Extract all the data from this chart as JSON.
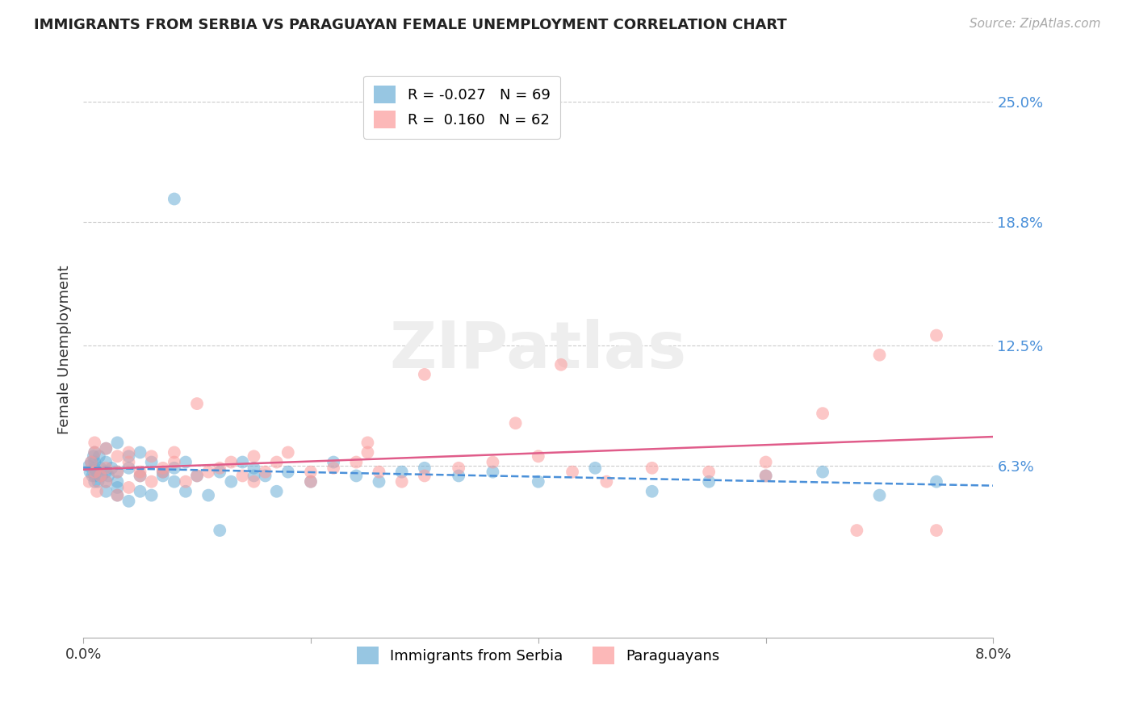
{
  "title": "IMMIGRANTS FROM SERBIA VS PARAGUAYAN FEMALE UNEMPLOYMENT CORRELATION CHART",
  "source": "Source: ZipAtlas.com",
  "ylabel": "Female Unemployment",
  "ytick_labels": [
    "25.0%",
    "18.8%",
    "12.5%",
    "6.3%"
  ],
  "ytick_values": [
    0.25,
    0.188,
    0.125,
    0.063
  ],
  "xmin": 0.0,
  "xmax": 0.08,
  "ymin": -0.025,
  "ymax": 0.27,
  "color_serbia": "#6baed6",
  "color_paraguay": "#fb9a9a",
  "trendline_serbia_color": "#4a90d9",
  "trendline_paraguay_color": "#e05c8a",
  "serbia_x": [
    0.0005,
    0.0006,
    0.0007,
    0.0008,
    0.0009,
    0.001,
    0.001,
    0.001,
    0.001,
    0.001,
    0.0012,
    0.0013,
    0.0014,
    0.0015,
    0.0016,
    0.002,
    0.002,
    0.002,
    0.002,
    0.002,
    0.0022,
    0.0025,
    0.003,
    0.003,
    0.003,
    0.003,
    0.003,
    0.004,
    0.004,
    0.004,
    0.005,
    0.005,
    0.005,
    0.006,
    0.006,
    0.007,
    0.007,
    0.008,
    0.008,
    0.009,
    0.009,
    0.01,
    0.011,
    0.012,
    0.013,
    0.014,
    0.015,
    0.016,
    0.017,
    0.018,
    0.02,
    0.022,
    0.024,
    0.026,
    0.028,
    0.03,
    0.033,
    0.036,
    0.04,
    0.045,
    0.05,
    0.055,
    0.06,
    0.065,
    0.07,
    0.075,
    0.015,
    0.008,
    0.012
  ],
  "serbia_y": [
    0.063,
    0.06,
    0.065,
    0.058,
    0.068,
    0.055,
    0.07,
    0.062,
    0.058,
    0.065,
    0.06,
    0.055,
    0.068,
    0.062,
    0.058,
    0.06,
    0.065,
    0.055,
    0.072,
    0.05,
    0.058,
    0.062,
    0.048,
    0.075,
    0.052,
    0.06,
    0.055,
    0.068,
    0.045,
    0.062,
    0.058,
    0.05,
    0.07,
    0.065,
    0.048,
    0.058,
    0.06,
    0.055,
    0.062,
    0.05,
    0.065,
    0.058,
    0.048,
    0.06,
    0.055,
    0.065,
    0.062,
    0.058,
    0.05,
    0.06,
    0.055,
    0.065,
    0.058,
    0.055,
    0.06,
    0.062,
    0.058,
    0.06,
    0.055,
    0.062,
    0.05,
    0.055,
    0.058,
    0.06,
    0.048,
    0.055,
    0.058,
    0.2,
    0.03
  ],
  "paraguay_x": [
    0.0005,
    0.0007,
    0.001,
    0.001,
    0.001,
    0.0012,
    0.0015,
    0.002,
    0.002,
    0.002,
    0.003,
    0.003,
    0.003,
    0.004,
    0.004,
    0.004,
    0.005,
    0.005,
    0.006,
    0.006,
    0.007,
    0.007,
    0.008,
    0.008,
    0.009,
    0.01,
    0.011,
    0.012,
    0.013,
    0.014,
    0.015,
    0.016,
    0.017,
    0.018,
    0.02,
    0.022,
    0.024,
    0.026,
    0.028,
    0.03,
    0.033,
    0.036,
    0.04,
    0.043,
    0.046,
    0.05,
    0.055,
    0.06,
    0.065,
    0.07,
    0.075,
    0.038,
    0.025,
    0.01,
    0.015,
    0.02,
    0.025,
    0.03,
    0.042,
    0.06,
    0.068,
    0.075
  ],
  "paraguay_y": [
    0.055,
    0.065,
    0.075,
    0.06,
    0.07,
    0.05,
    0.058,
    0.062,
    0.072,
    0.055,
    0.068,
    0.048,
    0.06,
    0.052,
    0.065,
    0.07,
    0.058,
    0.06,
    0.055,
    0.068,
    0.062,
    0.06,
    0.065,
    0.07,
    0.055,
    0.058,
    0.06,
    0.062,
    0.065,
    0.058,
    0.055,
    0.06,
    0.065,
    0.07,
    0.06,
    0.062,
    0.065,
    0.06,
    0.055,
    0.058,
    0.062,
    0.065,
    0.068,
    0.06,
    0.055,
    0.062,
    0.06,
    0.058,
    0.09,
    0.12,
    0.13,
    0.085,
    0.075,
    0.095,
    0.068,
    0.055,
    0.07,
    0.11,
    0.115,
    0.065,
    0.03,
    0.03
  ]
}
